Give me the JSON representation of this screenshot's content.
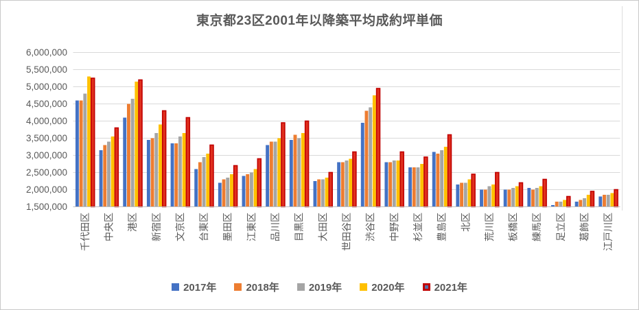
{
  "chart_data": {
    "type": "bar",
    "title": "東京都23区2001年以降築平均成約坪単価",
    "xlabel": "",
    "ylabel": "",
    "ylim": [
      1500000,
      6000000
    ],
    "ytick_step": 500000,
    "ytick_labels": [
      "1,500,000",
      "2,000,000",
      "2,500,000",
      "3,000,000",
      "3,500,000",
      "4,000,000",
      "4,500,000",
      "5,000,000",
      "5,500,000",
      "6,000,000"
    ],
    "grid": true,
    "legend_position": "bottom",
    "categories": [
      "千代田区",
      "中央区",
      "港区",
      "新宿区",
      "文京区",
      "台東区",
      "墨田区",
      "江東区",
      "品川区",
      "目黒区",
      "大田区",
      "世田谷区",
      "渋谷区",
      "中野区",
      "杉並区",
      "豊島区",
      "北区",
      "荒川区",
      "板橋区",
      "練馬区",
      "足立区",
      "葛飾区",
      "江戸川区"
    ],
    "series": [
      {
        "name": "2017年",
        "color": "#4472C4",
        "values": [
          4600000,
          3150000,
          4100000,
          3450000,
          3350000,
          2600000,
          2200000,
          2400000,
          3300000,
          3450000,
          2250000,
          2800000,
          3950000,
          2800000,
          2650000,
          3100000,
          2150000,
          2000000,
          2000000,
          2050000,
          1550000,
          1650000,
          1800000
        ]
      },
      {
        "name": "2018年",
        "color": "#ED7D31",
        "values": [
          4600000,
          3300000,
          4500000,
          3500000,
          3350000,
          2800000,
          2300000,
          2450000,
          3400000,
          3600000,
          2300000,
          2800000,
          4300000,
          2800000,
          2650000,
          3050000,
          2200000,
          2000000,
          2000000,
          2000000,
          1650000,
          1700000,
          1850000
        ]
      },
      {
        "name": "2019年",
        "color": "#A5A5A5",
        "values": [
          4800000,
          3400000,
          4650000,
          3650000,
          3550000,
          2950000,
          2350000,
          2500000,
          3400000,
          3500000,
          2300000,
          2850000,
          4400000,
          2850000,
          2650000,
          3150000,
          2200000,
          2100000,
          2050000,
          2050000,
          1650000,
          1750000,
          1850000
        ]
      },
      {
        "name": "2020年",
        "color": "#FFC000",
        "values": [
          5300000,
          3550000,
          5150000,
          3900000,
          3650000,
          3050000,
          2450000,
          2600000,
          3500000,
          3650000,
          2350000,
          2900000,
          4750000,
          2850000,
          2750000,
          3250000,
          2300000,
          2150000,
          2100000,
          2100000,
          1700000,
          1850000,
          1900000
        ]
      },
      {
        "name": "2021年",
        "color": "#C00000",
        "fill": "#e0301e",
        "border_color": "#C00000",
        "legend_fill": "#5a6fa5",
        "values": [
          5250000,
          3800000,
          5200000,
          4300000,
          4100000,
          3300000,
          2700000,
          2900000,
          3950000,
          4000000,
          2500000,
          3100000,
          4950000,
          3100000,
          2950000,
          3600000,
          2450000,
          2500000,
          2200000,
          2300000,
          1800000,
          1950000,
          2000000
        ]
      }
    ]
  },
  "style": {
    "background": "#ffffff",
    "frame_border_color": "#c9c9c9",
    "title_color": "#595959",
    "axis_text_color": "#595959",
    "grid_color": "#d9d9d9",
    "axis_line_color": "#bfbfbf",
    "right_edge_line_color": "#dcdcdc"
  }
}
